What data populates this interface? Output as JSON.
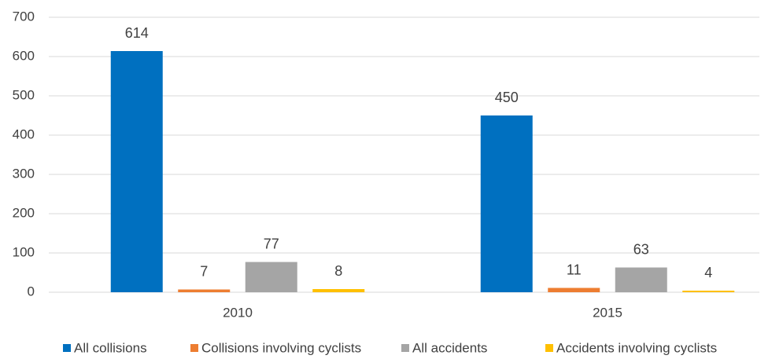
{
  "chart_data": {
    "type": "bar",
    "categories": [
      "2010",
      "2015"
    ],
    "series": [
      {
        "name": "All collisions",
        "color": "#0070c0",
        "values": [
          614,
          450
        ]
      },
      {
        "name": "Collisions involving cyclists",
        "color": "#ed7d31",
        "values": [
          7,
          11
        ]
      },
      {
        "name": "All accidents",
        "color": "#a5a5a5",
        "values": [
          77,
          63
        ]
      },
      {
        "name": "Accidents involving cyclists",
        "color": "#ffc000",
        "values": [
          8,
          4
        ]
      }
    ],
    "ylim": [
      0,
      700
    ],
    "yticks": [
      0,
      100,
      200,
      300,
      400,
      500,
      600,
      700
    ],
    "grid": true,
    "legend": "bottom"
  }
}
